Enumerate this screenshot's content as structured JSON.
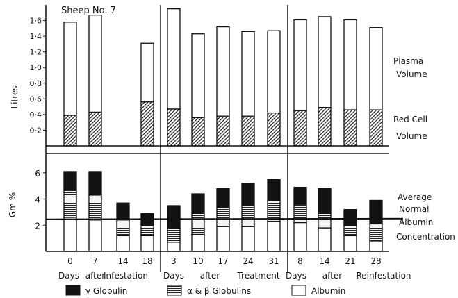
{
  "figure_title": "Sheep No. 7",
  "legend": [
    {
      "label": "γ Globulin",
      "swatch": "black"
    },
    {
      "label": "α & β Globulins",
      "swatch": "horizontal-lines"
    },
    {
      "label": "Albumin",
      "swatch": "white"
    }
  ],
  "colors": {
    "ink": "#111111",
    "paper": "#ffffff"
  },
  "chart_data": [
    {
      "type": "bar",
      "stacked": true,
      "ylabel": "Litres",
      "ylim": [
        0,
        1.8
      ],
      "yticks": [
        "0·2",
        "0·4",
        "0·6",
        "0·8",
        "1·0",
        "1·2",
        "1·4",
        "1·6"
      ],
      "ytick_values": [
        0.2,
        0.4,
        0.6,
        0.8,
        1.0,
        1.2,
        1.4,
        1.6
      ],
      "categories": [
        "0",
        "7",
        "14",
        "18",
        "3",
        "10",
        "17",
        "24",
        "31",
        "8",
        "14",
        "21",
        "28"
      ],
      "series": [
        {
          "name": "Red Cell Volume",
          "values": [
            0.39,
            0.43,
            null,
            0.56,
            0.47,
            0.36,
            0.38,
            0.38,
            0.42,
            0.45,
            0.49,
            0.46,
            0.46
          ]
        },
        {
          "name": "Plasma Volume",
          "values": [
            1.19,
            1.24,
            null,
            0.75,
            1.28,
            1.07,
            1.14,
            1.08,
            1.05,
            1.16,
            1.16,
            1.15,
            1.05
          ]
        }
      ],
      "labels": [
        {
          "text": "Plasma",
          "anchor": "top"
        },
        {
          "text": "Volume",
          "anchor": "top"
        },
        {
          "text": "Red Cell",
          "anchor": "bottom"
        },
        {
          "text": "Volume",
          "anchor": "bottom"
        }
      ]
    },
    {
      "type": "bar",
      "stacked": true,
      "ylabel": "Gm %",
      "ylim": [
        0,
        7
      ],
      "yticks": [
        "2",
        "4",
        "6"
      ],
      "ytick_values": [
        2,
        4,
        6
      ],
      "categories": [
        "0",
        "7",
        "14",
        "18",
        "3",
        "10",
        "17",
        "24",
        "31",
        "8",
        "14",
        "21",
        "28"
      ],
      "period_labels": [
        [
          "Days",
          "after",
          "Infestation"
        ],
        [
          "Days",
          "after",
          "Treatment"
        ],
        [
          "Days",
          "after",
          "Reinfestation"
        ]
      ],
      "series": [
        {
          "name": "Albumin",
          "values": [
            2.6,
            2.4,
            1.2,
            1.2,
            0.7,
            1.3,
            1.9,
            1.9,
            2.3,
            2.2,
            1.8,
            1.2,
            0.8
          ]
        },
        {
          "name": "α & β Globulins",
          "values": [
            2.1,
            1.9,
            1.2,
            0.8,
            1.1,
            1.6,
            1.5,
            1.6,
            1.6,
            1.4,
            1.1,
            0.8,
            1.3
          ]
        },
        {
          "name": "γ Globulin",
          "values": [
            1.4,
            1.8,
            1.3,
            0.9,
            1.7,
            1.5,
            1.4,
            1.7,
            1.6,
            1.3,
            1.9,
            1.2,
            1.8
          ]
        }
      ],
      "reference_line": {
        "value": 2.45,
        "label": [
          "Average",
          "Normal",
          "Albumin",
          "Concentration"
        ]
      }
    }
  ]
}
